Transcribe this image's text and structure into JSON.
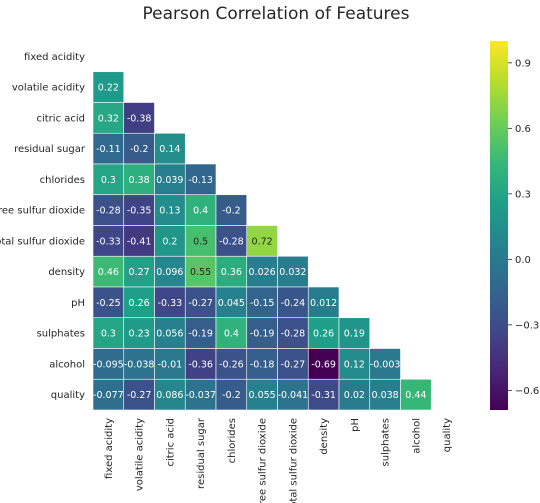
{
  "chart_data": {
    "type": "heatmap",
    "title": "Pearson Correlation of Features",
    "xlabel": "",
    "ylabel": "",
    "mask": "upper triangle including diagonal",
    "colormap": "viridis",
    "vmin": -0.69,
    "vmax": 1.0,
    "colorbar_ticks": [
      0.9,
      0.6,
      0.3,
      0.0,
      -0.3,
      -0.6
    ],
    "colorbar_tick_labels": [
      "0.9",
      "0.6",
      "0.3",
      "0.0",
      "−0.3",
      "−0.6"
    ],
    "labels": [
      "fixed acidity",
      "volatile acidity",
      "citric acid",
      "residual sugar",
      "chlorides",
      "free sulfur dioxide",
      "total sulfur dioxide",
      "density",
      "pH",
      "sulphates",
      "alcohol",
      "quality"
    ],
    "cells": [
      [],
      [
        {
          "v": 0.22,
          "t": "0.22"
        }
      ],
      [
        {
          "v": 0.32,
          "t": "0.32"
        },
        {
          "v": -0.38,
          "t": "-0.38"
        }
      ],
      [
        {
          "v": -0.11,
          "t": "-0.11"
        },
        {
          "v": -0.2,
          "t": "-0.2"
        },
        {
          "v": 0.14,
          "t": "0.14"
        }
      ],
      [
        {
          "v": 0.3,
          "t": "0.3"
        },
        {
          "v": 0.38,
          "t": "0.38"
        },
        {
          "v": 0.039,
          "t": "0.039"
        },
        {
          "v": -0.13,
          "t": "-0.13"
        }
      ],
      [
        {
          "v": -0.28,
          "t": "-0.28"
        },
        {
          "v": -0.35,
          "t": "-0.35"
        },
        {
          "v": 0.13,
          "t": "0.13"
        },
        {
          "v": 0.4,
          "t": "0.4"
        },
        {
          "v": -0.2,
          "t": "-0.2"
        }
      ],
      [
        {
          "v": -0.33,
          "t": "-0.33"
        },
        {
          "v": -0.41,
          "t": "-0.41"
        },
        {
          "v": 0.2,
          "t": "0.2"
        },
        {
          "v": 0.5,
          "t": "0.5"
        },
        {
          "v": -0.28,
          "t": "-0.28"
        },
        {
          "v": 0.72,
          "t": "0.72"
        }
      ],
      [
        {
          "v": 0.46,
          "t": "0.46"
        },
        {
          "v": 0.27,
          "t": "0.27"
        },
        {
          "v": 0.096,
          "t": "0.096"
        },
        {
          "v": 0.55,
          "t": "0.55"
        },
        {
          "v": 0.36,
          "t": "0.36"
        },
        {
          "v": 0.026,
          "t": "0.026"
        },
        {
          "v": 0.032,
          "t": "0.032"
        }
      ],
      [
        {
          "v": -0.25,
          "t": "-0.25"
        },
        {
          "v": 0.26,
          "t": "0.26"
        },
        {
          "v": -0.33,
          "t": "-0.33"
        },
        {
          "v": -0.27,
          "t": "-0.27"
        },
        {
          "v": 0.045,
          "t": "0.045"
        },
        {
          "v": -0.15,
          "t": "-0.15"
        },
        {
          "v": -0.24,
          "t": "-0.24"
        },
        {
          "v": 0.012,
          "t": "0.012"
        }
      ],
      [
        {
          "v": 0.3,
          "t": "0.3"
        },
        {
          "v": 0.23,
          "t": "0.23"
        },
        {
          "v": 0.056,
          "t": "0.056"
        },
        {
          "v": -0.19,
          "t": "-0.19"
        },
        {
          "v": 0.4,
          "t": "0.4"
        },
        {
          "v": -0.19,
          "t": "-0.19"
        },
        {
          "v": -0.28,
          "t": "-0.28"
        },
        {
          "v": 0.26,
          "t": "0.26"
        },
        {
          "v": 0.19,
          "t": "0.19"
        }
      ],
      [
        {
          "v": -0.095,
          "t": "-0.095"
        },
        {
          "v": -0.038,
          "t": "-0.038"
        },
        {
          "v": -0.01,
          "t": "-0.01"
        },
        {
          "v": -0.36,
          "t": "-0.36"
        },
        {
          "v": -0.26,
          "t": "-0.26"
        },
        {
          "v": -0.18,
          "t": "-0.18"
        },
        {
          "v": -0.27,
          "t": "-0.27"
        },
        {
          "v": -0.69,
          "t": "-0.69"
        },
        {
          "v": 0.12,
          "t": "0.12"
        },
        {
          "v": -0.003,
          "t": "-0.003"
        }
      ],
      [
        {
          "v": -0.077,
          "t": "-0.077"
        },
        {
          "v": -0.27,
          "t": "-0.27"
        },
        {
          "v": 0.086,
          "t": "0.086"
        },
        {
          "v": -0.037,
          "t": "-0.037"
        },
        {
          "v": -0.2,
          "t": "-0.2"
        },
        {
          "v": 0.055,
          "t": "0.055"
        },
        {
          "v": -0.041,
          "t": "-0.041"
        },
        {
          "v": -0.31,
          "t": "-0.31"
        },
        {
          "v": 0.02,
          "t": "0.02"
        },
        {
          "v": 0.038,
          "t": "0.038"
        },
        {
          "v": 0.44,
          "t": "0.44"
        }
      ]
    ]
  }
}
